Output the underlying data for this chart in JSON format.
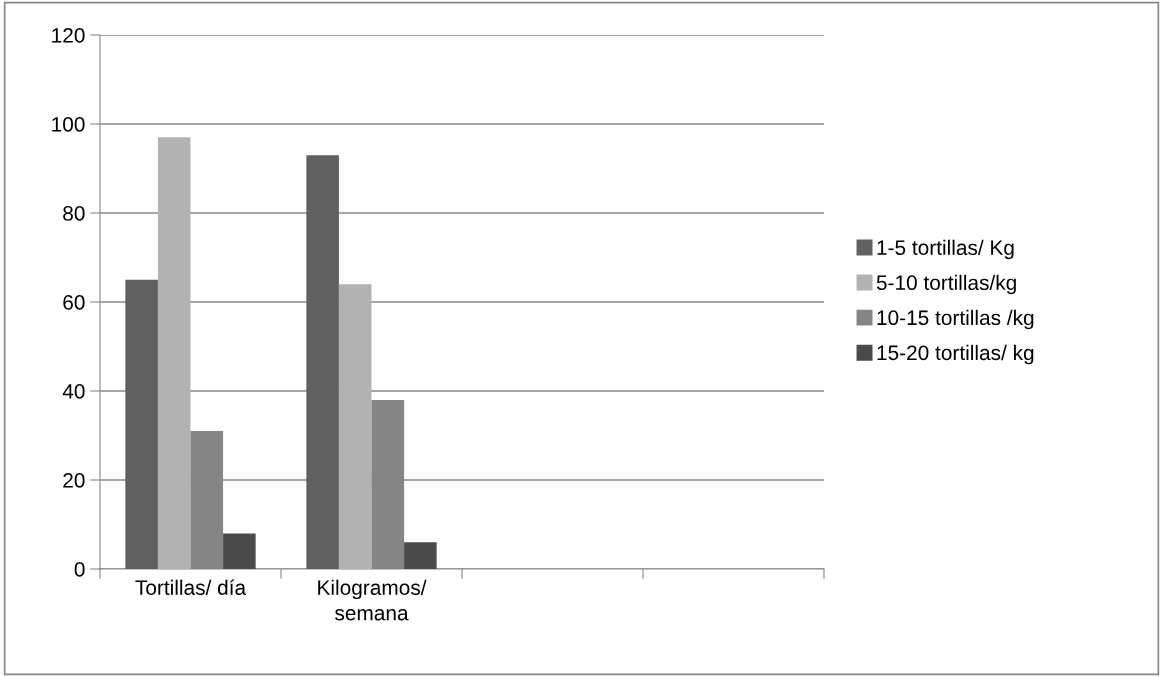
{
  "chart_data": {
    "type": "bar",
    "categories": [
      "Tortillas/ día",
      "Kilogramos/ semana",
      null,
      null
    ],
    "series": [
      {
        "name": "1-5 tortillas/ Kg",
        "color": "#606060",
        "values": [
          65,
          93,
          null,
          null
        ]
      },
      {
        "name": "5-10 tortillas/kg",
        "color": "#b2b2b2",
        "values": [
          97,
          64,
          null,
          null
        ]
      },
      {
        "name": "10-15 tortillas /kg",
        "color": "#858585",
        "values": [
          31,
          38,
          null,
          null
        ]
      },
      {
        "name": "15-20 tortillas/ kg",
        "color": "#4a4a4a",
        "values": [
          8,
          6,
          null,
          null
        ]
      }
    ],
    "ylim": [
      0,
      120
    ],
    "yticks": [
      0,
      20,
      40,
      60,
      80,
      100,
      120
    ],
    "grid": "y",
    "legend": "right"
  }
}
